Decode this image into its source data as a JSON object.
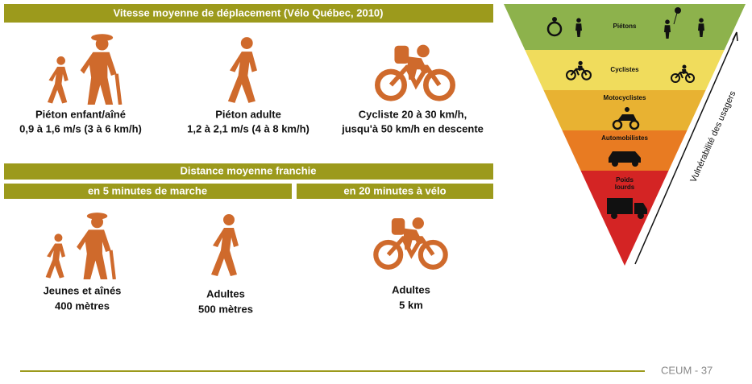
{
  "speed": {
    "title": "Vitesse moyenne de déplacement (Vélo Québec, 2010)",
    "items": [
      {
        "label": "Piéton enfant/aîné",
        "detail": "0,9 à 1,6 m/s (3 à 6 km/h)"
      },
      {
        "label": "Piéton adulte",
        "detail": "1,2 à 2,1 m/s (4 à 8 km/h)"
      },
      {
        "label": "Cycliste 20 à 30 km/h,",
        "detail": "jusqu'à 50 km/h en descente"
      }
    ]
  },
  "distance": {
    "title": "Distance moyenne franchie",
    "walk_header": "en 5 minutes de marche",
    "bike_header": "en 20 minutes à vélo",
    "items": [
      {
        "label": "Jeunes et aînés",
        "detail": "400 mètres"
      },
      {
        "label": "Adultes",
        "detail": "500 mètres"
      },
      {
        "label": "Adultes",
        "detail": "5 km"
      }
    ]
  },
  "pyramid": {
    "axis_label": "Vulnérabilité des usagers",
    "levels": [
      "Piétons",
      "Cyclistes",
      "Motocyclistes",
      "Automobilistes"
    ],
    "heavy_vehicles": [
      "Poids",
      "lourds"
    ]
  },
  "footer": "CEUM - 37"
}
